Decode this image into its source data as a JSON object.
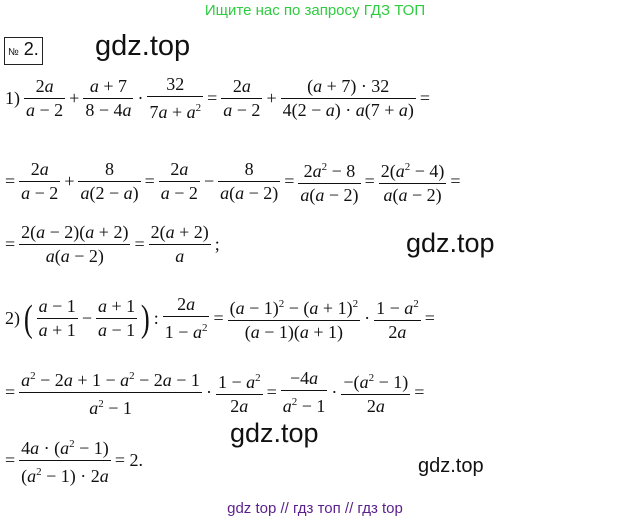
{
  "top_banner": "Ищите нас по запросу ГДЗ ТОП",
  "bottom_banner": "gdz top  //  гдз топ  //  гдз top",
  "task_number": {
    "symbol": "№",
    "value": "2."
  },
  "watermarks": [
    "gdz.top",
    "gdz.top",
    "gdz.top",
    "gdz.top"
  ],
  "lines": [
    [
      {
        "t": "1)"
      },
      {
        "n": "2a",
        "d": "a − 2"
      },
      {
        "t": "+"
      },
      {
        "n": "a + 7",
        "d": "8 − 4a"
      },
      {
        "t": "·"
      },
      {
        "n": "32",
        "d": "7a + a^2"
      },
      {
        "t": "="
      },
      {
        "n": "2a",
        "d": "a − 2"
      },
      {
        "t": "+"
      },
      {
        "n": "(a + 7) · 32",
        "d": "4(2 − a) · a(7 + a)"
      },
      {
        "t": "="
      }
    ],
    [
      {
        "t": "="
      },
      {
        "n": "2a",
        "d": "a − 2"
      },
      {
        "t": "+"
      },
      {
        "n": "8",
        "d": "a(2 − a)"
      },
      {
        "t": "="
      },
      {
        "n": "2a",
        "d": "a − 2"
      },
      {
        "t": "−"
      },
      {
        "n": "8",
        "d": "a(a − 2)"
      },
      {
        "t": "="
      },
      {
        "n": "2a^2 − 8",
        "d": "a(a − 2)"
      },
      {
        "t": "="
      },
      {
        "n": "2(a^2 − 4)",
        "d": "a(a − 2)"
      },
      {
        "t": "="
      }
    ],
    [
      {
        "t": "="
      },
      {
        "n": "2(a − 2)(a + 2)",
        "d": "a(a − 2)"
      },
      {
        "t": "="
      },
      {
        "n": "2(a + 2)",
        "d": "a"
      },
      {
        "t": ";"
      }
    ],
    [
      {
        "t": "2)"
      },
      {
        "p": "("
      },
      {
        "n": "a − 1",
        "d": "a + 1"
      },
      {
        "t": "−"
      },
      {
        "n": "a + 1",
        "d": "a − 1"
      },
      {
        "p": ")"
      },
      {
        "t": ":"
      },
      {
        "n": "2a",
        "d": "1 − a^2"
      },
      {
        "t": "="
      },
      {
        "n": "(a − 1)^2 − (a + 1)^2",
        "d": "(a − 1)(a + 1)"
      },
      {
        "t": "·"
      },
      {
        "n": "1 − a^2",
        "d": "2a"
      },
      {
        "t": "="
      }
    ],
    [
      {
        "t": "="
      },
      {
        "n": "a^2 − 2a + 1 − a^2 − 2a − 1",
        "d": "a^2 − 1"
      },
      {
        "t": "·"
      },
      {
        "n": "1 − a^2",
        "d": "2a"
      },
      {
        "t": "="
      },
      {
        "n": "−4a",
        "d": "a^2 − 1"
      },
      {
        "t": "·"
      },
      {
        "n": "−(a^2 − 1)",
        "d": "2a"
      },
      {
        "t": "="
      }
    ],
    [
      {
        "t": "="
      },
      {
        "n": "4a · (a^2 − 1)",
        "d": "(a^2 − 1) · 2a"
      },
      {
        "t": "= 2."
      }
    ]
  ]
}
